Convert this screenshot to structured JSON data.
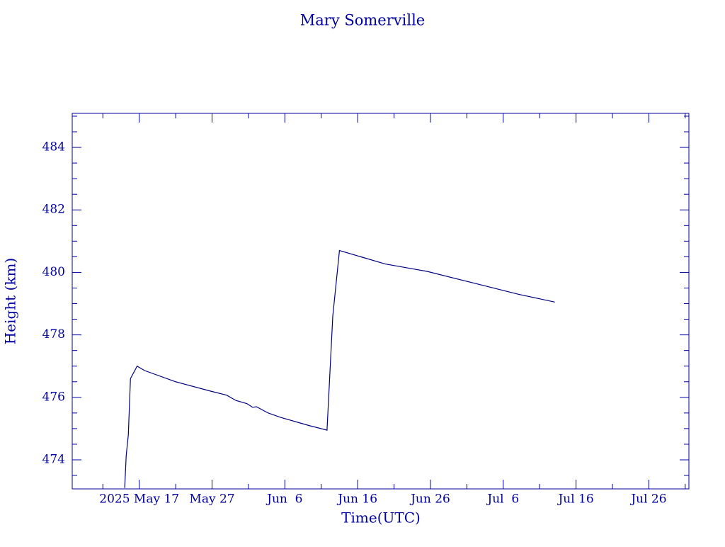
{
  "chart_data": {
    "type": "line",
    "title": "Mary Somerville",
    "x_label": "Time(UTC)",
    "y_label": "Height (km)",
    "color": "#000080",
    "axis_color": "#0000a0",
    "xlim": [
      "2025-05-07T19:00",
      "2025-07-31T12:00"
    ],
    "ylim": [
      473.07,
      485.09
    ],
    "xticks": [
      {
        "value": "2025-05-17T00:00",
        "label": "2025 May 17"
      },
      {
        "value": "2025-05-27T00:00",
        "label": "May 27"
      },
      {
        "value": "2025-06-06T00:00",
        "label": "Jun  6"
      },
      {
        "value": "2025-06-16T00:00",
        "label": "Jun 16"
      },
      {
        "value": "2025-06-26T00:00",
        "label": "Jun 26"
      },
      {
        "value": "2025-07-06T00:00",
        "label": "Jul  6"
      },
      {
        "value": "2025-07-16T00:00",
        "label": "Jul 16"
      },
      {
        "value": "2025-07-26T00:00",
        "label": "Jul 26"
      }
    ],
    "yticks": [
      474,
      476,
      478,
      480,
      482,
      484
    ],
    "x": [
      "2025-05-15T00:00",
      "2025-05-15T05:00",
      "2025-05-15T12:00",
      "2025-05-15T19:00",
      "2025-05-16T17:00",
      "2025-05-17T17:00",
      "2025-05-22T00:00",
      "2025-05-26T19:00",
      "2025-05-29T00:00",
      "2025-05-30T07:00",
      "2025-05-31T19:00",
      "2025-06-01T14:00",
      "2025-06-02T02:00",
      "2025-06-03T17:00",
      "2025-06-05T10:00",
      "2025-06-09T07:00",
      "2025-06-11T19:00",
      "2025-06-12T14:00",
      "2025-06-13T12:00",
      "2025-06-19T19:00",
      "2025-06-25T14:00",
      "2025-07-03T07:00",
      "2025-07-08T02:00",
      "2025-07-13T02:00"
    ],
    "values": [
      473.1,
      474.14,
      474.8,
      476.6,
      477.0,
      476.86,
      476.5,
      476.2,
      476.07,
      475.9,
      475.8,
      475.68,
      475.7,
      475.5,
      475.36,
      475.1,
      474.95,
      478.6,
      480.7,
      480.27,
      480.03,
      479.58,
      479.3,
      479.05
    ]
  }
}
